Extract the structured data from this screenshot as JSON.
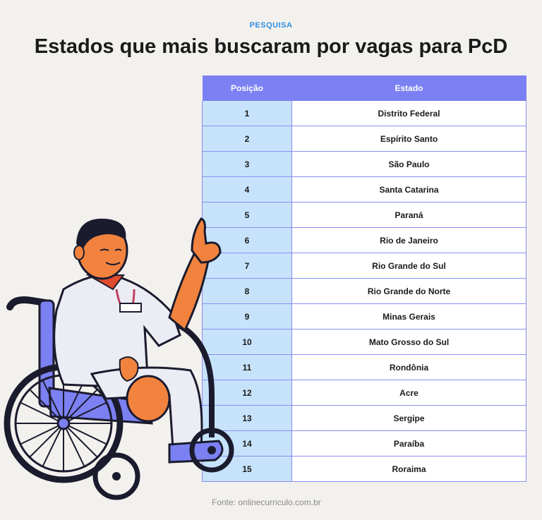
{
  "header": {
    "eyebrow": "PESQUISA",
    "title": "Estados que mais buscaram por vagas para PcD"
  },
  "table": {
    "columns": [
      "Posição",
      "Estado"
    ],
    "rows": [
      {
        "pos": "1",
        "state": "Distrito Federal"
      },
      {
        "pos": "2",
        "state": "Espírito Santo"
      },
      {
        "pos": "3",
        "state": "São Paulo"
      },
      {
        "pos": "4",
        "state": "Santa Catarina"
      },
      {
        "pos": "5",
        "state": "Paraná"
      },
      {
        "pos": "6",
        "state": "Rio de Janeiro"
      },
      {
        "pos": "7",
        "state": "Rio Grande do Sul"
      },
      {
        "pos": "8",
        "state": "Rio Grande do Norte"
      },
      {
        "pos": "9",
        "state": "Minas Gerais"
      },
      {
        "pos": "10",
        "state": "Mato Grosso do Sul"
      },
      {
        "pos": "11",
        "state": "Rondônia"
      },
      {
        "pos": "12",
        "state": "Acre"
      },
      {
        "pos": "13",
        "state": "Sergipe"
      },
      {
        "pos": "14",
        "state": "Paraíba"
      },
      {
        "pos": "15",
        "state": "Roraima"
      }
    ]
  },
  "footer": {
    "source": "Fonte: onlinecurriculo.com.br"
  },
  "colors": {
    "accent_blue": "#2f8fe0",
    "header_purple": "#7b80f2",
    "pos_cell": "#c6e3fb",
    "background": "#f3f1ee"
  },
  "illustration": {
    "icon": "wheelchair-user-illustration"
  }
}
